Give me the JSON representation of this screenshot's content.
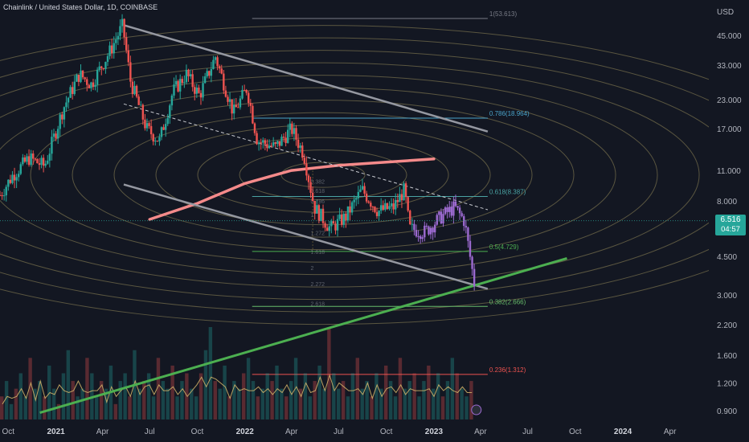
{
  "header": {
    "symbol_line": "Chainlink / United States Dollar, 1D, COINBASE"
  },
  "price_tag": {
    "price": "6.516",
    "countdown": "04:57",
    "color": "#26a69a"
  },
  "colors": {
    "background": "#131722",
    "channel": "#9598a1",
    "trendline": "#4caf50",
    "curve": "#f48a8a",
    "ellipse": "#8a8155",
    "bull_candle": "#26a69a",
    "bear_candle": "#ef5350",
    "recent_candle": "#9c6ad0"
  },
  "chart_data": {
    "type": "candlestick",
    "scale": "log",
    "currency": "USD",
    "x_range": [
      "2020-09-15",
      "2024-06-15"
    ],
    "y_range": [
      0.82,
      65
    ],
    "x_ticks": [
      {
        "date": "2020-10-01",
        "label": "Oct",
        "year": false
      },
      {
        "date": "2021-01-01",
        "label": "2021",
        "year": true
      },
      {
        "date": "2021-04-01",
        "label": "Apr",
        "year": false
      },
      {
        "date": "2021-07-01",
        "label": "Jul",
        "year": false
      },
      {
        "date": "2021-10-01",
        "label": "Oct",
        "year": false
      },
      {
        "date": "2022-01-01",
        "label": "2022",
        "year": true
      },
      {
        "date": "2022-04-01",
        "label": "Apr",
        "year": false
      },
      {
        "date": "2022-07-01",
        "label": "Jul",
        "year": false
      },
      {
        "date": "2022-10-01",
        "label": "Oct",
        "year": false
      },
      {
        "date": "2023-01-01",
        "label": "2023",
        "year": true
      },
      {
        "date": "2023-04-01",
        "label": "Apr",
        "year": false
      },
      {
        "date": "2023-07-01",
        "label": "Jul",
        "year": false
      },
      {
        "date": "2023-10-01",
        "label": "Oct",
        "year": false
      },
      {
        "date": "2024-01-01",
        "label": "2024",
        "year": true
      },
      {
        "date": "2024-04-01",
        "label": "Apr",
        "year": false
      }
    ],
    "y_ticks": [
      {
        "value": 45,
        "label": "45.000"
      },
      {
        "value": 33,
        "label": "33.000"
      },
      {
        "value": 23,
        "label": "23.000"
      },
      {
        "value": 17,
        "label": "17.000"
      },
      {
        "value": 11,
        "label": "11.000"
      },
      {
        "value": 8,
        "label": "8.000"
      },
      {
        "value": 4.5,
        "label": "4.500"
      },
      {
        "value": 3,
        "label": "3.000"
      },
      {
        "value": 2.2,
        "label": "2.200"
      },
      {
        "value": 1.6,
        "label": "1.600"
      },
      {
        "value": 1.2,
        "label": "1.200"
      },
      {
        "value": 0.9,
        "label": "0.900"
      }
    ],
    "y_axis_label": "USD",
    "last_price": 6.516,
    "price_path": [
      {
        "date": "2020-09-15",
        "price": 8.5
      },
      {
        "date": "2020-10-10",
        "price": 10.5
      },
      {
        "date": "2020-11-10",
        "price": 12.5
      },
      {
        "date": "2020-12-10",
        "price": 11.5
      },
      {
        "date": "2021-01-15",
        "price": 21
      },
      {
        "date": "2021-02-15",
        "price": 30
      },
      {
        "date": "2021-03-10",
        "price": 27
      },
      {
        "date": "2021-04-15",
        "price": 38
      },
      {
        "date": "2021-05-10",
        "price": 50
      },
      {
        "date": "2021-05-25",
        "price": 28
      },
      {
        "date": "2021-06-25",
        "price": 17
      },
      {
        "date": "2021-07-20",
        "price": 15
      },
      {
        "date": "2021-08-15",
        "price": 25
      },
      {
        "date": "2021-09-10",
        "price": 30
      },
      {
        "date": "2021-10-05",
        "price": 24
      },
      {
        "date": "2021-11-05",
        "price": 36
      },
      {
        "date": "2021-12-10",
        "price": 20
      },
      {
        "date": "2022-01-05",
        "price": 26
      },
      {
        "date": "2022-01-25",
        "price": 15
      },
      {
        "date": "2022-03-01",
        "price": 14
      },
      {
        "date": "2022-04-01",
        "price": 17
      },
      {
        "date": "2022-04-25",
        "price": 13
      },
      {
        "date": "2022-05-15",
        "price": 7.5
      },
      {
        "date": "2022-06-15",
        "price": 6
      },
      {
        "date": "2022-07-15",
        "price": 6.8
      },
      {
        "date": "2022-08-15",
        "price": 9
      },
      {
        "date": "2022-09-15",
        "price": 7.2
      },
      {
        "date": "2022-10-15",
        "price": 7.5
      },
      {
        "date": "2022-11-05",
        "price": 9
      },
      {
        "date": "2022-11-15",
        "price": 6
      },
      {
        "date": "2022-12-15",
        "price": 5.8
      },
      {
        "date": "2023-01-15",
        "price": 6.8
      },
      {
        "date": "2023-02-10",
        "price": 7.5
      },
      {
        "date": "2023-03-01",
        "price": 6.5
      },
      {
        "date": "2023-03-20",
        "price": 3.4
      }
    ],
    "fib_levels": [
      {
        "label": "1(53.613)",
        "value": 53.613,
        "color": "#787b86",
        "from": "2022-01-15",
        "to": "2023-04-15"
      },
      {
        "label": "0.786(18.964)",
        "value": 18.964,
        "color": "#4aa3c9",
        "from": "2022-01-15",
        "to": "2023-04-15"
      },
      {
        "label": "0.618(8.387)",
        "value": 8.387,
        "color": "#4aa3a3",
        "from": "2022-01-15",
        "to": "2023-04-15"
      },
      {
        "label": "0.5(4.729)",
        "value": 4.729,
        "color": "#4caf50",
        "from": "2022-01-15",
        "to": "2023-04-15"
      },
      {
        "label": "0.382(2.666)",
        "value": 2.666,
        "color": "#66bb6a",
        "from": "2022-01-15",
        "to": "2023-04-15"
      },
      {
        "label": "0.236(1.312)",
        "value": 1.312,
        "color": "#ef5350",
        "from": "2022-01-15",
        "to": "2023-04-15"
      }
    ],
    "extension_labels": [
      {
        "label": "0.382",
        "value": 9.6
      },
      {
        "label": "0.618",
        "value": 8.7
      },
      {
        "label": "0.786",
        "value": 7.8
      },
      {
        "label": "1",
        "value": 6.8
      },
      {
        "label": "1.272",
        "value": 5.6
      },
      {
        "label": "1.618",
        "value": 4.6
      },
      {
        "label": "2",
        "value": 3.9
      },
      {
        "label": "2.272",
        "value": 3.3
      },
      {
        "label": "2.618",
        "value": 2.68
      }
    ],
    "trend_lines": [
      {
        "name": "channel-upper",
        "from": {
          "date": "2021-05-12",
          "price": 50
        },
        "to": {
          "date": "2023-04-15",
          "price": 16.5
        },
        "color": "#9598a1"
      },
      {
        "name": "channel-lower",
        "from": {
          "date": "2021-05-12",
          "price": 9.5
        },
        "to": {
          "date": "2023-04-15",
          "price": 3.2
        },
        "color": "#9598a1"
      },
      {
        "name": "channel-mid",
        "from": {
          "date": "2021-05-12",
          "price": 22
        },
        "to": {
          "date": "2023-04-15",
          "price": 7.3
        },
        "color": "#c8cad0",
        "dashed": true
      },
      {
        "name": "support-trendline",
        "from": {
          "date": "2020-12-01",
          "price": 0.88
        },
        "to": {
          "date": "2023-09-15",
          "price": 4.4
        },
        "color": "#4caf50"
      }
    ],
    "arc_curve": [
      {
        "date": "2021-07-01",
        "price": 6.6
      },
      {
        "date": "2021-10-01",
        "price": 7.8
      },
      {
        "date": "2022-01-01",
        "price": 9.6
      },
      {
        "date": "2022-04-01",
        "price": 11
      },
      {
        "date": "2022-07-01",
        "price": 11.6
      },
      {
        "date": "2022-10-01",
        "price": 12
      },
      {
        "date": "2023-01-01",
        "price": 12.4
      }
    ],
    "volume_series": [
      3,
      5,
      2,
      4,
      6,
      3,
      8,
      4,
      5,
      3,
      7,
      4,
      2,
      6,
      9,
      5,
      3,
      4,
      8,
      6,
      3,
      5,
      4,
      7,
      2,
      5,
      6,
      3,
      9,
      4,
      5,
      6,
      3,
      8,
      5,
      4,
      7,
      3,
      5,
      6,
      4,
      3,
      6,
      9,
      12,
      5,
      4,
      7,
      3,
      5,
      4,
      6,
      8,
      5,
      3,
      4,
      6,
      5,
      7,
      4,
      3,
      5,
      8,
      4,
      6,
      3,
      5,
      7,
      4,
      12,
      6,
      4,
      5,
      3,
      6,
      8,
      4,
      5,
      3,
      6,
      4,
      7,
      5,
      3,
      8,
      4,
      5,
      6,
      3,
      5,
      7,
      4,
      6,
      3,
      5,
      8,
      6,
      4,
      3,
      5
    ]
  }
}
